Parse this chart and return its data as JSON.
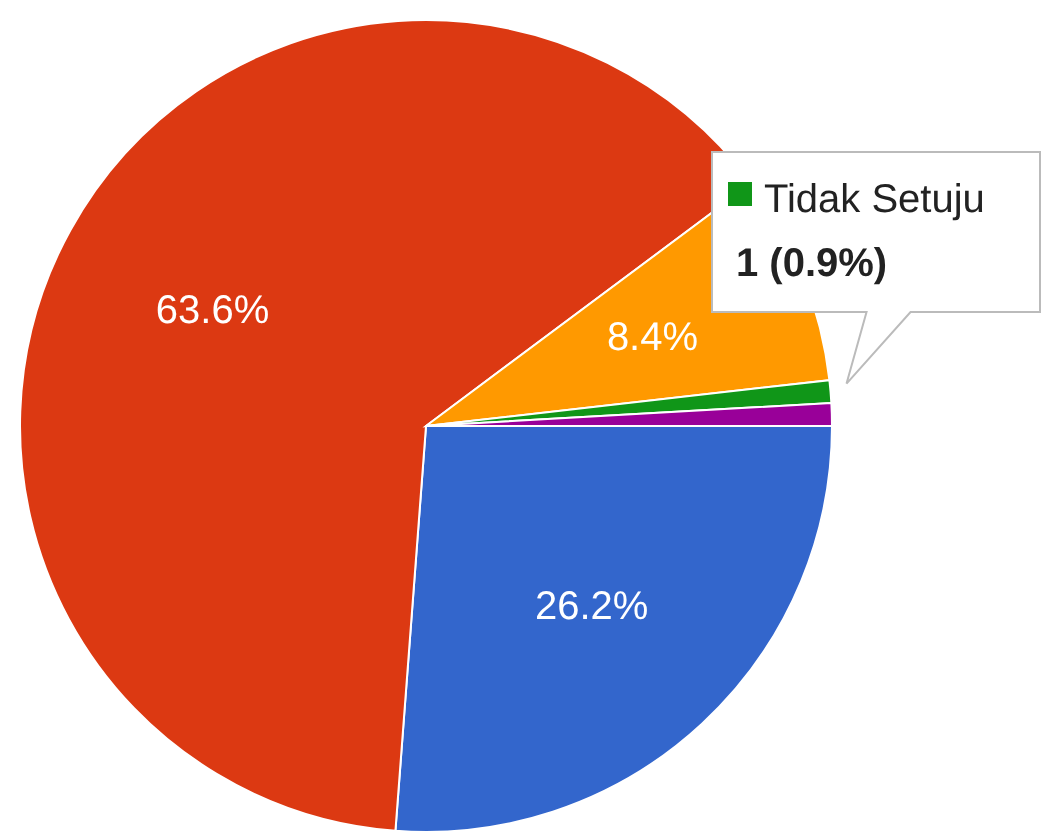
{
  "chart_data": {
    "type": "pie",
    "categories": [
      null,
      null,
      null,
      "Tidak Setuju",
      null
    ],
    "values": [
      26.2,
      63.6,
      8.4,
      0.9,
      0.9
    ],
    "colors": [
      "#3366cc",
      "#dc3912",
      "#ff9900",
      "#109618",
      "#990099"
    ],
    "value_labels": [
      "26.2%",
      "63.6%",
      "8.4%",
      null,
      null
    ],
    "annotations": [
      "1 (0.9%)"
    ]
  }
}
